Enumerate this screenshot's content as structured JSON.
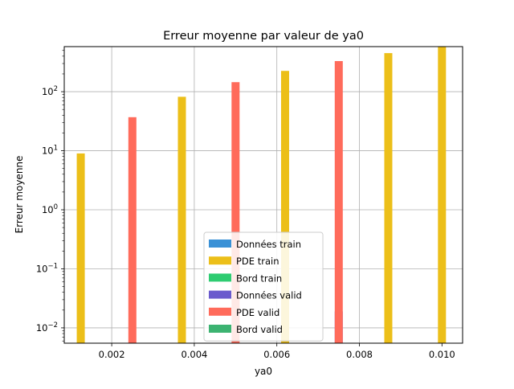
{
  "chart_data": {
    "type": "bar",
    "title": "Erreur moyenne par valeur de ya0",
    "xlabel": "ya0",
    "ylabel": "Erreur moyenne",
    "yscale": "log",
    "xlim": [
      0.00085,
      0.0105
    ],
    "ylim": [
      0.0055,
      580
    ],
    "xticks": [
      {
        "value": 0.002,
        "label": "0.002"
      },
      {
        "value": 0.004,
        "label": "0.004"
      },
      {
        "value": 0.006,
        "label": "0.006"
      },
      {
        "value": 0.008,
        "label": "0.008"
      },
      {
        "value": 0.01,
        "label": "0.010"
      }
    ],
    "yticks": [
      {
        "value": 0.01,
        "base": "10",
        "exp": "−2"
      },
      {
        "value": 0.1,
        "base": "10",
        "exp": "−1"
      },
      {
        "value": 1,
        "base": "10",
        "exp": "0"
      },
      {
        "value": 10,
        "base": "10",
        "exp": "1"
      },
      {
        "value": 100,
        "base": "10",
        "exp": "2"
      }
    ],
    "grid": true,
    "legend_position": "lower center",
    "series": [
      {
        "name": "Données train",
        "color": "#3a91d6",
        "points": []
      },
      {
        "name": "PDE train",
        "color": "#ecbf19",
        "points": [
          {
            "x": 0.00125,
            "y": 9
          },
          {
            "x": 0.0037,
            "y": 82
          },
          {
            "x": 0.0062,
            "y": 225
          },
          {
            "x": 0.0087,
            "y": 450
          },
          {
            "x": 0.01,
            "y": 580
          }
        ]
      },
      {
        "name": "Bord train",
        "color": "#2ecc71",
        "points": []
      },
      {
        "name": "Données valid",
        "color": "#6a5acd",
        "points": [
          {
            "x": 0.0075,
            "y": 0.019
          }
        ]
      },
      {
        "name": "PDE valid",
        "color": "#ff6b5b",
        "points": [
          {
            "x": 0.0025,
            "y": 37
          },
          {
            "x": 0.005,
            "y": 145
          },
          {
            "x": 0.0075,
            "y": 330
          }
        ]
      },
      {
        "name": "Bord valid",
        "color": "#3cb371",
        "points": []
      }
    ]
  }
}
